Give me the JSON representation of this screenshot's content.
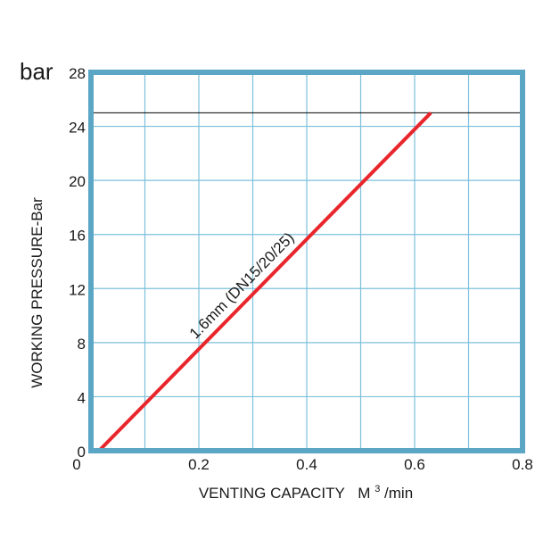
{
  "chart_data": {
    "type": "line",
    "unit_label": "bar",
    "xlabel_main": "VENTING CAPACITY",
    "xlabel_unit_base": "M",
    "xlabel_unit_sup": "3",
    "xlabel_unit_rest": "/min",
    "ylabel": "WORKING PRESSURE-Bar",
    "xlim": [
      0,
      0.8
    ],
    "ylim": [
      0,
      28
    ],
    "x_ticks": [
      0,
      0.2,
      0.4,
      0.6,
      0.8
    ],
    "x_tick_labels": [
      "0",
      "0.2",
      "0.4",
      "0.6",
      "0.8"
    ],
    "x_grid": [
      0.1,
      0.2,
      0.3,
      0.4,
      0.5,
      0.6,
      0.7
    ],
    "y_ticks": [
      0,
      4,
      8,
      12,
      16,
      20,
      24,
      28
    ],
    "y_tick_labels": [
      "0",
      "4",
      "8",
      "12",
      "16",
      "20",
      "24",
      "28"
    ],
    "y_grid": [
      4,
      8,
      12,
      16,
      20,
      24
    ],
    "reference_line": {
      "y": 25,
      "color": "#000000"
    },
    "series": [
      {
        "name": "1.6mm (DN15/20/25)",
        "color": "#e8262b",
        "x": [
          0.015,
          0.63
        ],
        "y": [
          0,
          25
        ]
      }
    ],
    "colors": {
      "frame": "#5aa6c4",
      "grid": "#7cc0dc",
      "text": "#1a1a1a"
    }
  }
}
